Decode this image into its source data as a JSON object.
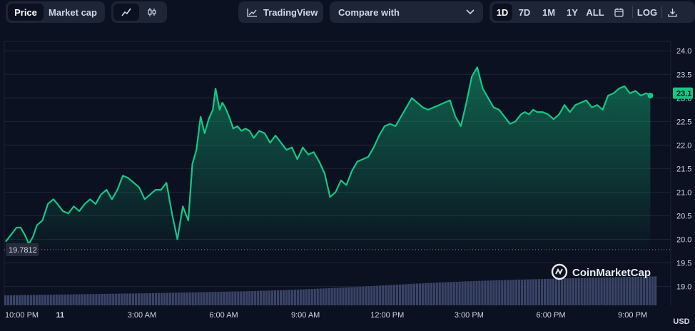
{
  "toolbar": {
    "tabs": [
      {
        "label": "Price",
        "active": true
      },
      {
        "label": "Market cap",
        "active": false
      }
    ],
    "chart_types": [
      {
        "icon": "line-chart-icon",
        "active": true
      },
      {
        "icon": "candlestick-icon",
        "active": false
      }
    ],
    "tradingview_label": "TradingView",
    "compare_label": "Compare with",
    "ranges": [
      {
        "label": "1D",
        "active": true
      },
      {
        "label": "7D",
        "active": false
      },
      {
        "label": "1M",
        "active": false
      },
      {
        "label": "1Y",
        "active": false
      },
      {
        "label": "ALL",
        "active": false
      }
    ],
    "log_label": "LOG"
  },
  "colors": {
    "line": "#16c784",
    "background": "#0b1120",
    "volume": "#3a4468",
    "badge": "#16c784",
    "ref_badge": "#252b3b"
  },
  "watermark": "CoinMarketCap",
  "currency": "USD",
  "chart_data": {
    "type": "area",
    "x_ticks": [
      "10:00 PM",
      "11",
      "3:00 AM",
      "6:00 AM",
      "9:00 AM",
      "12:00 PM",
      "3:00 PM",
      "6:00 PM",
      "9:00 PM"
    ],
    "y_ticks": [
      "24.0",
      "23.5",
      "23.0",
      "22.5",
      "22.0",
      "21.5",
      "21.0",
      "20.5",
      "20.0",
      "19.5",
      "19.0"
    ],
    "ylim": [
      18.6,
      24.2
    ],
    "xlim": [
      -0.05,
      23.9
    ],
    "open_price_label": "19.7812",
    "open_price": 19.7812,
    "current_price_label": "23.1",
    "current_price": 23.1,
    "series": [
      {
        "x": [
          0,
          0.2,
          0.4,
          0.55,
          0.7,
          0.85,
          1.0,
          1.15,
          1.35,
          1.55,
          1.75,
          1.9,
          2.1,
          2.3,
          2.5,
          2.7,
          2.9,
          3.1,
          3.3,
          3.5,
          3.7,
          3.9,
          4.1,
          4.3,
          4.5,
          4.7,
          4.9,
          5.1,
          5.3,
          5.5,
          5.7,
          5.9,
          6.1,
          6.3,
          6.5,
          6.7,
          6.85,
          7.0,
          7.15,
          7.3,
          7.45,
          7.6,
          7.7,
          7.85,
          7.95,
          8.05,
          8.2,
          8.35,
          8.5,
          8.65,
          8.8,
          8.95,
          9.1,
          9.3,
          9.5,
          9.7,
          9.9,
          10.1,
          10.3,
          10.5,
          10.7,
          10.9,
          11.1,
          11.3,
          11.5,
          11.7,
          11.9,
          12.1,
          12.3,
          12.5,
          12.7,
          12.9,
          13.1,
          13.3,
          13.5,
          13.7,
          13.9,
          14.1,
          14.3,
          14.5,
          14.7,
          14.9,
          15.1,
          15.3,
          15.5,
          15.7,
          15.9,
          16.1,
          16.3,
          16.5,
          16.7,
          16.9,
          17.1,
          17.3,
          17.5,
          17.7,
          17.9,
          18.1,
          18.3,
          18.5,
          18.7,
          18.9,
          19.05,
          19.2,
          19.35,
          19.5,
          19.7,
          19.9,
          20.1,
          20.3,
          20.5,
          20.7,
          20.9,
          21.1,
          21.3,
          21.5,
          21.7,
          21.9,
          22.1,
          22.3,
          22.5,
          22.7,
          22.9,
          23.1,
          23.3,
          23.5,
          23.65
        ],
        "y": [
          19.95,
          20.1,
          20.25,
          20.25,
          20.1,
          19.9,
          20.05,
          20.3,
          20.4,
          20.75,
          20.85,
          20.75,
          20.6,
          20.55,
          20.7,
          20.6,
          20.75,
          20.85,
          20.75,
          20.95,
          21.05,
          20.85,
          21.05,
          21.35,
          21.3,
          21.2,
          21.1,
          20.85,
          20.95,
          21.05,
          21.05,
          21.2,
          20.55,
          20.0,
          20.7,
          20.4,
          21.6,
          21.9,
          22.6,
          22.25,
          22.55,
          22.75,
          23.2,
          22.75,
          22.9,
          22.8,
          22.6,
          22.35,
          22.4,
          22.3,
          22.35,
          22.3,
          22.15,
          22.3,
          22.25,
          22.05,
          22.2,
          22.05,
          21.9,
          21.95,
          21.7,
          21.95,
          21.8,
          21.85,
          21.65,
          21.4,
          20.9,
          21.0,
          21.25,
          21.15,
          21.45,
          21.65,
          21.7,
          21.75,
          21.95,
          22.2,
          22.4,
          22.45,
          22.4,
          22.6,
          22.8,
          23.0,
          22.9,
          22.8,
          22.75,
          22.8,
          22.85,
          22.9,
          22.95,
          22.6,
          22.4,
          22.9,
          23.45,
          23.65,
          23.2,
          23.0,
          22.8,
          22.75,
          22.6,
          22.45,
          22.5,
          22.65,
          22.7,
          22.65,
          22.75,
          22.7,
          22.7,
          22.65,
          22.55,
          22.65,
          22.85,
          22.7,
          22.85,
          22.9,
          22.95,
          22.8,
          22.85,
          22.75,
          23.05,
          23.1,
          23.2,
          23.25,
          23.1,
          23.15,
          23.05,
          23.1,
          23.05
        ]
      }
    ],
    "volume": {
      "description_hidden": true,
      "values": [
        1,
        1.04,
        1.08,
        1.12,
        1.16,
        1.2,
        1.25,
        1.3,
        1.36,
        1.42,
        1.5,
        1.6,
        1.72,
        1.85,
        2.0,
        2.15,
        2.28,
        2.4,
        2.5,
        2.58,
        2.65,
        2.72,
        2.78,
        2.84,
        2.9
      ]
    }
  }
}
